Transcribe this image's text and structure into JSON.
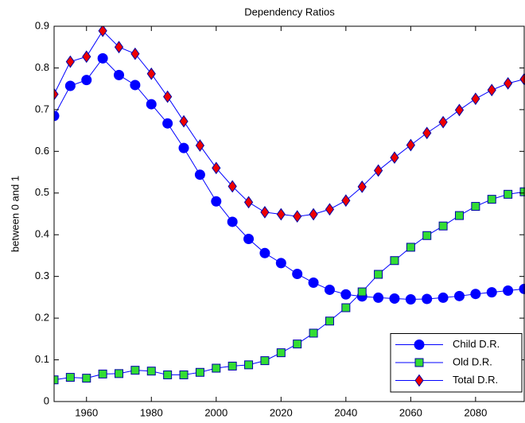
{
  "chart_data": {
    "type": "line",
    "title": "Dependency Ratios",
    "ylabel": "between 0 and 1",
    "x": [
      1950,
      1955,
      1960,
      1965,
      1970,
      1975,
      1980,
      1985,
      1990,
      1995,
      2000,
      2005,
      2010,
      2015,
      2020,
      2025,
      2030,
      2035,
      2040,
      2045,
      2050,
      2055,
      2060,
      2065,
      2070,
      2075,
      2080,
      2085,
      2090,
      2095
    ],
    "series": [
      {
        "name": "Child D.R.",
        "color": "#0000ff",
        "marker": "circle",
        "marker_color": "#0000ff",
        "values": [
          0.685,
          0.757,
          0.771,
          0.823,
          0.783,
          0.759,
          0.713,
          0.667,
          0.608,
          0.544,
          0.48,
          0.431,
          0.39,
          0.356,
          0.332,
          0.306,
          0.285,
          0.268,
          0.257,
          0.252,
          0.249,
          0.247,
          0.245,
          0.246,
          0.249,
          0.253,
          0.258,
          0.262,
          0.266,
          0.27
        ]
      },
      {
        "name": "Old D.R.",
        "color": "#0000ff",
        "marker": "square",
        "marker_color": "#33dd33",
        "values": [
          0.052,
          0.058,
          0.056,
          0.066,
          0.067,
          0.075,
          0.073,
          0.064,
          0.064,
          0.07,
          0.08,
          0.085,
          0.088,
          0.098,
          0.117,
          0.138,
          0.164,
          0.193,
          0.225,
          0.263,
          0.305,
          0.338,
          0.37,
          0.398,
          0.421,
          0.446,
          0.468,
          0.485,
          0.497,
          0.503
        ]
      },
      {
        "name": "Total D.R.",
        "color": "#0000ff",
        "marker": "diamond",
        "marker_color": "#ee0000",
        "values": [
          0.737,
          0.815,
          0.827,
          0.889,
          0.85,
          0.834,
          0.786,
          0.731,
          0.672,
          0.614,
          0.56,
          0.516,
          0.478,
          0.454,
          0.449,
          0.444,
          0.449,
          0.461,
          0.482,
          0.515,
          0.554,
          0.585,
          0.615,
          0.644,
          0.67,
          0.699,
          0.726,
          0.747,
          0.763,
          0.773
        ]
      }
    ],
    "xlim": [
      1950,
      2095
    ],
    "ylim": [
      0,
      0.9
    ],
    "xticks": [
      1960,
      1980,
      2000,
      2020,
      2040,
      2060,
      2080
    ],
    "yticks": [
      0,
      0.1,
      0.2,
      0.3,
      0.4,
      0.5,
      0.6,
      0.7,
      0.8,
      0.9
    ],
    "legend": "lower right"
  }
}
